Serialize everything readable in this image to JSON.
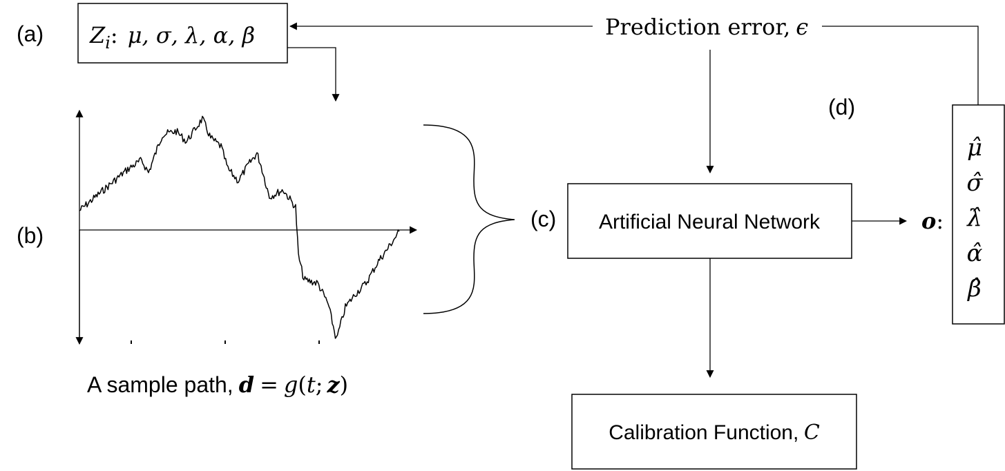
{
  "panel_labels": {
    "a": "(a)",
    "b": "(b)",
    "c": "(c)",
    "d": "(d)"
  },
  "params_box": {
    "z_symbol": "Z",
    "z_subscript": "i",
    "separator": ":",
    "params": "μ, σ, λ, α, β"
  },
  "prediction_error": {
    "text": "Prediction error,",
    "symbol": "ϵ"
  },
  "ann_box": {
    "label": "Artificial Neural Network"
  },
  "output": {
    "symbol": "o",
    "separator": ":",
    "estimates": [
      "μ̂",
      "σ̂",
      "λ̂",
      "α̂",
      "β̂"
    ]
  },
  "sample_path": {
    "label_prefix": "A sample path,",
    "d_symbol": "d",
    "equals": "=",
    "g": "g",
    "open": "(",
    "t": "t",
    "semicolon": ";",
    "z": "z",
    "close": ")"
  },
  "calibration_box": {
    "label": "Calibration Function,",
    "symbol": "C"
  }
}
